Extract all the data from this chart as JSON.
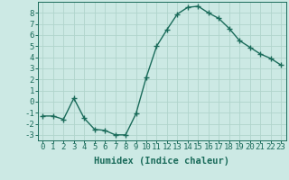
{
  "x": [
    0,
    1,
    2,
    3,
    4,
    5,
    6,
    7,
    8,
    9,
    10,
    11,
    12,
    13,
    14,
    15,
    16,
    17,
    18,
    19,
    20,
    21,
    22,
    23
  ],
  "y": [
    -1.3,
    -1.3,
    -1.6,
    0.3,
    -1.5,
    -2.5,
    -2.6,
    -3.0,
    -3.0,
    -1.1,
    2.2,
    5.0,
    6.5,
    7.9,
    8.5,
    8.6,
    8.0,
    7.5,
    6.6,
    5.5,
    4.9,
    4.3,
    3.9,
    3.3
  ],
  "line_color": "#1a6b5a",
  "marker": "+",
  "markersize": 4,
  "linewidth": 1.0,
  "xlabel": "Humidex (Indice chaleur)",
  "xlabel_fontsize": 7.5,
  "bg_color": "#cce9e4",
  "grid_color": "#b0d4cc",
  "xlim": [
    -0.5,
    23.5
  ],
  "ylim": [
    -3.5,
    9.0
  ],
  "xticks": [
    0,
    1,
    2,
    3,
    4,
    5,
    6,
    7,
    8,
    9,
    10,
    11,
    12,
    13,
    14,
    15,
    16,
    17,
    18,
    19,
    20,
    21,
    22,
    23
  ],
  "yticks": [
    -3,
    -2,
    -1,
    0,
    1,
    2,
    3,
    4,
    5,
    6,
    7,
    8
  ],
  "tick_fontsize": 6.5,
  "markeredgewidth": 1.0
}
